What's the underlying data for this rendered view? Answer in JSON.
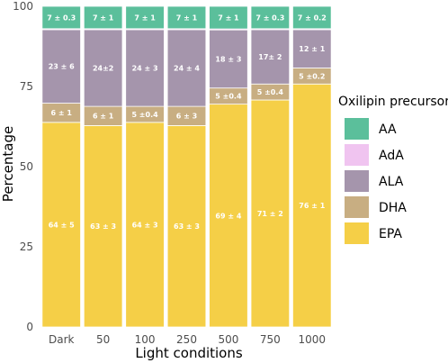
{
  "chart_data": {
    "type": "bar",
    "stacked": true,
    "categories": [
      "Dark",
      "50",
      "100",
      "250",
      "500",
      "750",
      "1000"
    ],
    "series": [
      {
        "name": "EPA",
        "color": "#f5cf47",
        "values": [
          64,
          63,
          64,
          63,
          69,
          71,
          76
        ],
        "labels": [
          "64 ± 5",
          "63 ± 3",
          "64 ± 3",
          "63 ± 3",
          "69 ± 4",
          "71 ± 2",
          "76 ± 1"
        ]
      },
      {
        "name": "DHA",
        "color": "#c8ae82",
        "values": [
          6,
          6,
          5,
          6,
          5,
          5,
          5
        ],
        "labels": [
          "6 ± 1",
          "6 ± 1",
          "5 ±0.4",
          "6 ± 3",
          "5 ±0.4",
          "5 ±0.4",
          "5 ±0.2"
        ]
      },
      {
        "name": "ALA",
        "color": "#a595ac",
        "values": [
          23,
          24,
          24,
          24,
          18,
          17,
          12
        ],
        "labels": [
          "23 ± 6",
          "24±2",
          "24 ± 3",
          "24 ± 4",
          "18 ± 3",
          "17± 2",
          "12 ± 1"
        ]
      },
      {
        "name": "AdA",
        "color": "#f0c4f0",
        "values": [
          0.3,
          0.3,
          0.3,
          0.3,
          0.3,
          0.3,
          0.3
        ],
        "labels": []
      },
      {
        "name": "AA",
        "color": "#5bbf9b",
        "values": [
          7,
          7,
          7,
          7,
          7,
          7,
          7
        ],
        "labels": [
          "7 ± 0.3",
          "7 ± 1",
          "7 ± 1",
          "7 ± 1",
          "7 ± 1",
          "7 ± 0.3",
          "7 ± 0.2"
        ]
      }
    ],
    "xlabel": "Light conditions",
    "ylabel": "Percentage",
    "ylim": [
      0,
      100
    ],
    "yticks": [
      0,
      25,
      50,
      75,
      100
    ],
    "legend": {
      "title": "Oxilipin precursors",
      "position": "right",
      "entries": [
        "AA",
        "AdA",
        "ALA",
        "DHA",
        "EPA"
      ]
    },
    "grid": false
  }
}
